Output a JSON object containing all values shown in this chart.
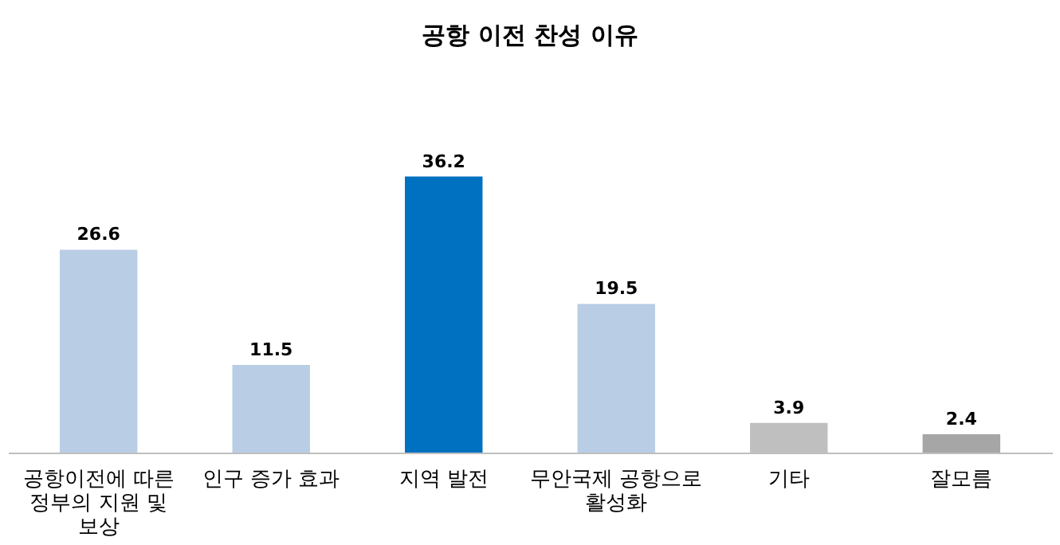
{
  "chart_data": {
    "type": "bar",
    "title": "공항 이전 찬성 이유",
    "categories": [
      "공항이전에 따른\n정부의 지원 및\n보상",
      "인구 증가 효과",
      "지역 발전",
      "무안국제 공항으로\n활성화",
      "기타",
      "잘모름"
    ],
    "values": [
      26.6,
      11.5,
      36.2,
      19.5,
      3.9,
      2.4
    ],
    "colors": [
      "#b9cde5",
      "#b9cde5",
      "#0070c0",
      "#b9cde5",
      "#bfbfbf",
      "#a6a6a6"
    ],
    "data_labels": true,
    "grid": false
  }
}
